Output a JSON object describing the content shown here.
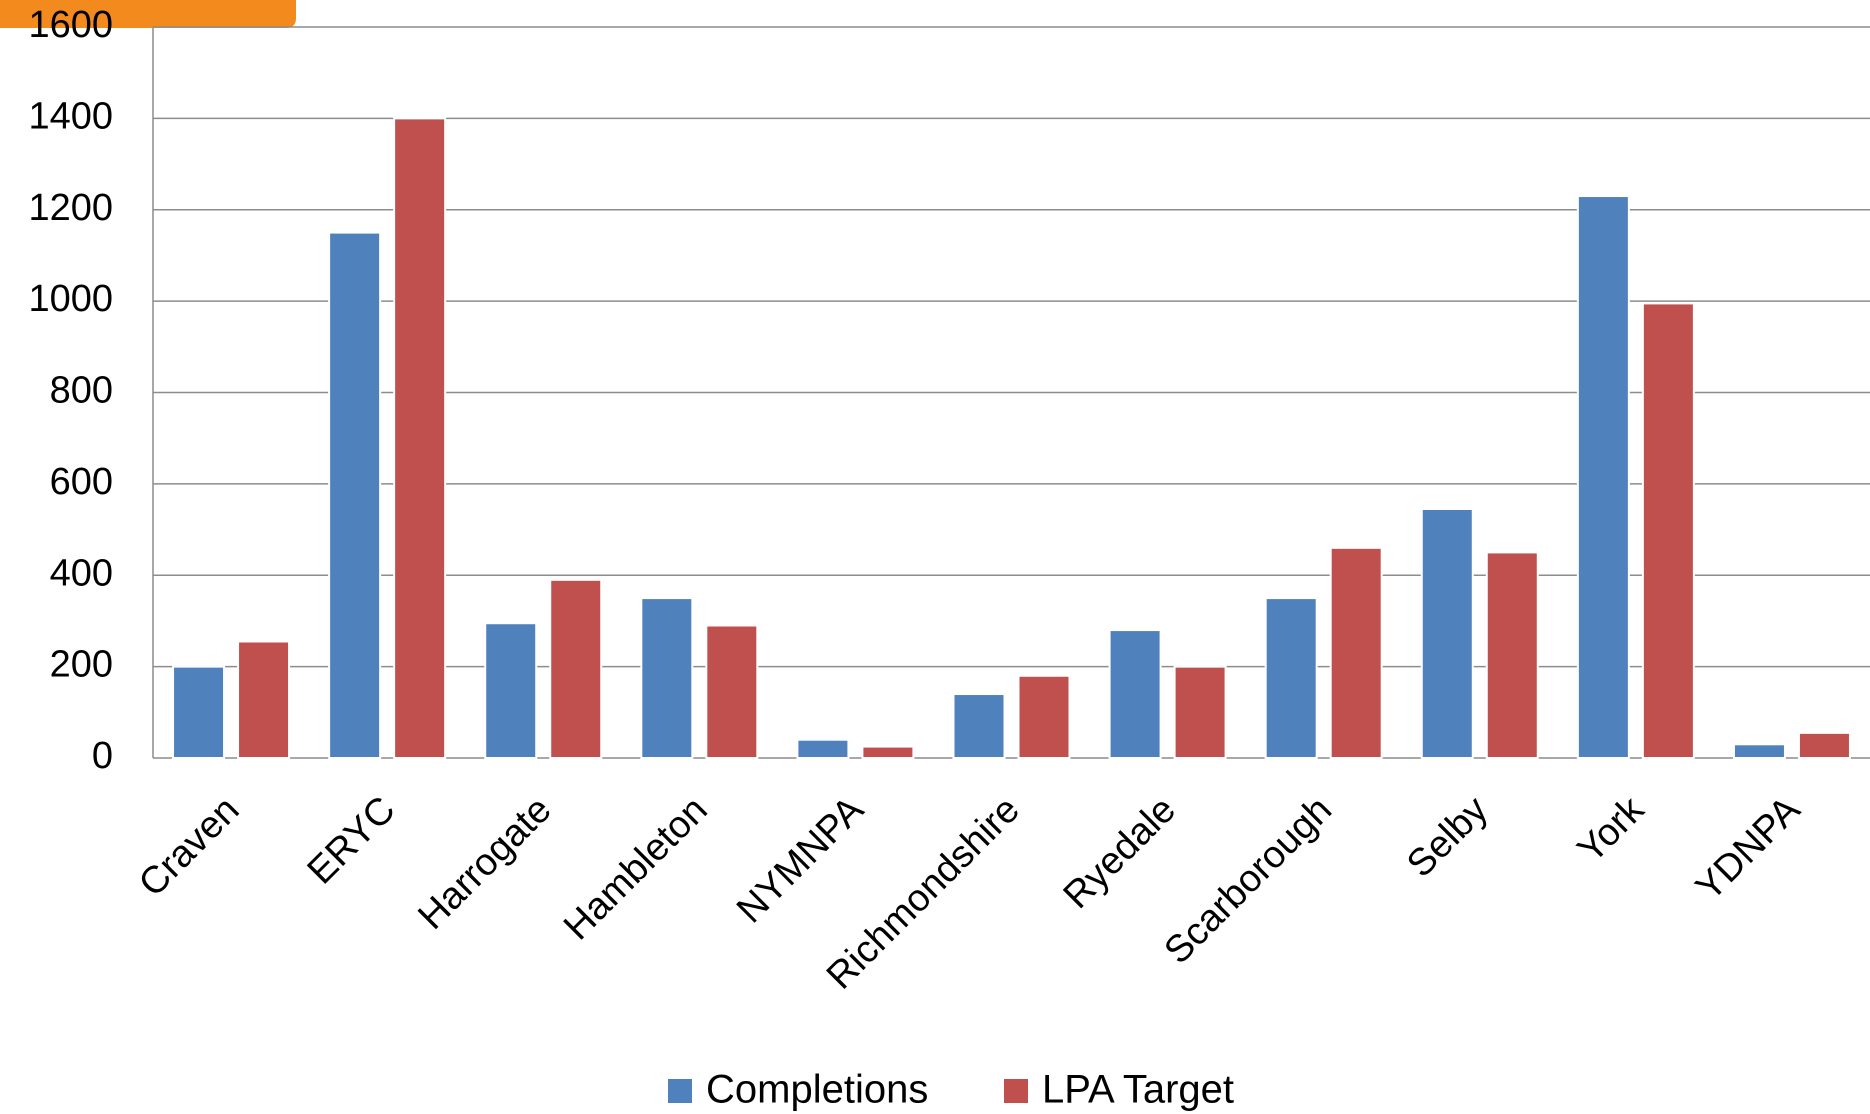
{
  "chart_data": {
    "type": "bar",
    "categories": [
      "Craven",
      "ERYC",
      "Harrogate",
      "Hambleton",
      "NYMNPA",
      "Richmondshire",
      "Ryedale",
      "Scarborough",
      "Selby",
      "York",
      "YDNPA"
    ],
    "series": [
      {
        "name": "Completions",
        "color": "#4f81bd",
        "values": [
          200,
          1150,
          295,
          350,
          40,
          140,
          280,
          350,
          545,
          1230,
          30
        ]
      },
      {
        "name": "LPA Target",
        "color": "#c0504d",
        "values": [
          255,
          1400,
          390,
          290,
          25,
          180,
          200,
          460,
          450,
          995,
          55
        ]
      }
    ],
    "ylim": [
      0,
      1600
    ],
    "yticks": [
      0,
      200,
      400,
      600,
      800,
      1000,
      1200,
      1400,
      1600
    ],
    "grid": true,
    "legend": "bottom"
  }
}
